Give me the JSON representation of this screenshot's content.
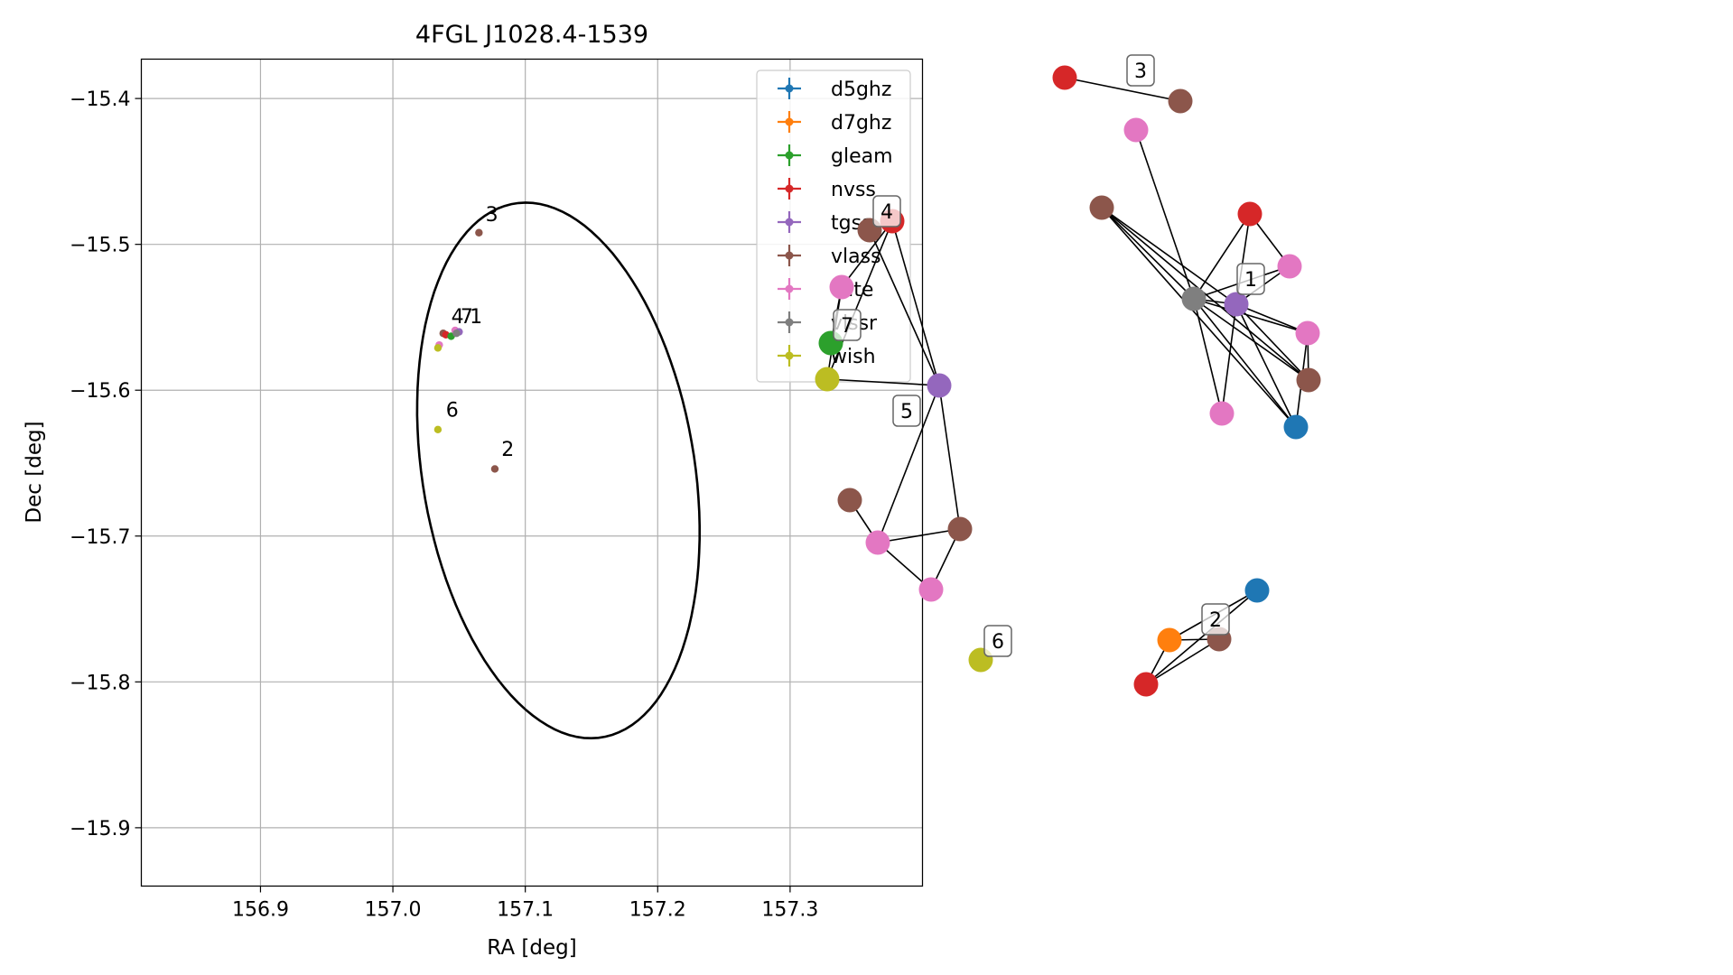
{
  "chart_data": [
    {
      "type": "scatter",
      "title": "4FGL J1028.4-1539",
      "xlabel": "RA [deg]",
      "ylabel": "Dec [deg]",
      "xlim": [
        156.81,
        157.4
      ],
      "ylim": [
        -15.94,
        -15.373
      ],
      "x_ticks": [
        156.9,
        157.0,
        157.1,
        157.2,
        157.3
      ],
      "x_tick_labels": [
        "156.9",
        "157.0",
        "157.1",
        "157.2",
        "157.3"
      ],
      "y_ticks": [
        -15.4,
        -15.5,
        -15.6,
        -15.7,
        -15.8,
        -15.9
      ],
      "y_tick_labels": [
        "−15.4",
        "−15.5",
        "−15.6",
        "−15.7",
        "−15.8",
        "−15.9"
      ],
      "grid": true,
      "legend_position": "top-right",
      "legend": [
        "d5ghz",
        "d7ghz",
        "gleam",
        "nvss",
        "tgss",
        "vlass",
        "vlite",
        "vlssr",
        "wish"
      ],
      "colors": {
        "d5ghz": "#1f77b4",
        "d7ghz": "#ff7f0e",
        "gleam": "#2ca02c",
        "nvss": "#d62728",
        "tgss": "#9467bd",
        "vlass": "#8c564b",
        "vlite": "#e377c2",
        "vlssr": "#7f7f7f",
        "wish": "#bcbd22"
      },
      "ellipse": {
        "center": [
          157.125,
          -15.655
        ],
        "ra_semi_axis": 0.1025,
        "dec_semi_axis": 0.186,
        "angle_deg": 11
      },
      "points": [
        {
          "survey": "vlass",
          "ra": 157.065,
          "dec": -15.492
        },
        {
          "survey": "vlass",
          "ra": 157.077,
          "dec": -15.654
        },
        {
          "survey": "wish",
          "ra": 157.034,
          "dec": -15.627
        },
        {
          "survey": "vlass",
          "ra": 157.038,
          "dec": -15.561
        },
        {
          "survey": "nvss",
          "ra": 157.04,
          "dec": -15.562
        },
        {
          "survey": "gleam",
          "ra": 157.044,
          "dec": -15.563
        },
        {
          "survey": "vlite",
          "ra": 157.047,
          "dec": -15.559
        },
        {
          "survey": "tgss",
          "ra": 157.05,
          "dec": -15.56
        },
        {
          "survey": "vlssr",
          "ra": 157.048,
          "dec": -15.561
        },
        {
          "survey": "vlite",
          "ra": 157.035,
          "dec": -15.569
        },
        {
          "survey": "wish",
          "ra": 157.034,
          "dec": -15.571
        }
      ],
      "cluster_labels": [
        {
          "text": "1",
          "ra": 157.058,
          "dec": -15.554
        },
        {
          "text": "7",
          "ra": 157.051,
          "dec": -15.554
        },
        {
          "text": "4",
          "ra": 157.044,
          "dec": -15.554
        },
        {
          "text": "3",
          "ra": 157.07,
          "dec": -15.484
        },
        {
          "text": "6",
          "ra": 157.04,
          "dec": -15.618
        },
        {
          "text": "2",
          "ra": 157.082,
          "dec": -15.645
        }
      ]
    },
    {
      "type": "network",
      "nodes": [
        {
          "id": "n3a",
          "survey": "nvss",
          "gx": 1179,
          "gy": 86
        },
        {
          "id": "n3b",
          "survey": "vlass",
          "gx": 1307,
          "gy": 112
        },
        {
          "id": "pA",
          "survey": "vlite",
          "gx": 1258,
          "gy": 144
        },
        {
          "id": "bA",
          "survey": "vlass",
          "gx": 1220,
          "gy": 230
        },
        {
          "id": "g1",
          "survey": "vlssr",
          "gx": 1322,
          "gy": 331
        },
        {
          "id": "t1",
          "survey": "tgss",
          "gx": 1369,
          "gy": 337
        },
        {
          "id": "r1",
          "survey": "nvss",
          "gx": 1384,
          "gy": 237
        },
        {
          "id": "p1",
          "survey": "vlite",
          "gx": 1428,
          "gy": 295
        },
        {
          "id": "p2",
          "survey": "vlite",
          "gx": 1448,
          "gy": 369
        },
        {
          "id": "b1",
          "survey": "vlass",
          "gx": 1449,
          "gy": 421
        },
        {
          "id": "p3",
          "survey": "vlite",
          "gx": 1353,
          "gy": 458
        },
        {
          "id": "bl1",
          "survey": "d5ghz",
          "gx": 1435,
          "gy": 473
        },
        {
          "id": "b4",
          "survey": "vlass",
          "gx": 963,
          "gy": 255
        },
        {
          "id": "r4",
          "survey": "nvss",
          "gx": 988,
          "gy": 245
        },
        {
          "id": "p7",
          "survey": "vlite",
          "gx": 932,
          "gy": 318
        },
        {
          "id": "gr7",
          "survey": "gleam",
          "gx": 920,
          "gy": 380
        },
        {
          "id": "y7",
          "survey": "wish",
          "gx": 916,
          "gy": 420
        },
        {
          "id": "t5",
          "survey": "tgss",
          "gx": 1040,
          "gy": 427
        },
        {
          "id": "b5a",
          "survey": "vlass",
          "gx": 941,
          "gy": 554
        },
        {
          "id": "p5a",
          "survey": "vlite",
          "gx": 972,
          "gy": 601
        },
        {
          "id": "b5b",
          "survey": "vlass",
          "gx": 1063,
          "gy": 586
        },
        {
          "id": "p5b",
          "survey": "vlite",
          "gx": 1031,
          "gy": 653
        },
        {
          "id": "y6",
          "survey": "wish",
          "gx": 1086,
          "gy": 731
        },
        {
          "id": "bl2",
          "survey": "d5ghz",
          "gx": 1392,
          "gy": 654
        },
        {
          "id": "o2",
          "survey": "d7ghz",
          "gx": 1295,
          "gy": 709
        },
        {
          "id": "b2",
          "survey": "vlass",
          "gx": 1350,
          "gy": 708
        },
        {
          "id": "r2",
          "survey": "nvss",
          "gx": 1269,
          "gy": 758
        }
      ],
      "edges": [
        [
          "n3a",
          "n3b"
        ],
        [
          "pA",
          "g1"
        ],
        [
          "bA",
          "g1"
        ],
        [
          "bA",
          "t1"
        ],
        [
          "bA",
          "b1"
        ],
        [
          "bA",
          "bl1"
        ],
        [
          "g1",
          "t1"
        ],
        [
          "g1",
          "r1"
        ],
        [
          "g1",
          "p1"
        ],
        [
          "g1",
          "p2"
        ],
        [
          "g1",
          "b1"
        ],
        [
          "g1",
          "p3"
        ],
        [
          "g1",
          "bl1"
        ],
        [
          "t1",
          "r1"
        ],
        [
          "t1",
          "p1"
        ],
        [
          "t1",
          "p2"
        ],
        [
          "t1",
          "b1"
        ],
        [
          "t1",
          "p3"
        ],
        [
          "t1",
          "bl1"
        ],
        [
          "r1",
          "p1"
        ],
        [
          "p2",
          "b1"
        ],
        [
          "p2",
          "bl1"
        ],
        [
          "r4",
          "p7"
        ],
        [
          "r4",
          "y7"
        ],
        [
          "r4",
          "t5"
        ],
        [
          "r4",
          "b4"
        ],
        [
          "b4",
          "t5"
        ],
        [
          "p7",
          "gr7"
        ],
        [
          "p7",
          "y7"
        ],
        [
          "y7",
          "t5"
        ],
        [
          "t5",
          "p5a"
        ],
        [
          "t5",
          "b5b"
        ],
        [
          "b5a",
          "p5a"
        ],
        [
          "p5a",
          "b5b"
        ],
        [
          "p5a",
          "p5b"
        ],
        [
          "b5b",
          "p5b"
        ],
        [
          "bl2",
          "o2"
        ],
        [
          "bl2",
          "r2"
        ],
        [
          "o2",
          "b2"
        ],
        [
          "o2",
          "r2"
        ],
        [
          "b2",
          "r2"
        ]
      ],
      "labels": [
        {
          "text": "3",
          "gx": 1263,
          "gy": 78
        },
        {
          "text": "1",
          "gx": 1385,
          "gy": 309
        },
        {
          "text": "4",
          "gx": 982,
          "gy": 234
        },
        {
          "text": "7",
          "gx": 938,
          "gy": 360
        },
        {
          "text": "5",
          "gx": 1004,
          "gy": 455
        },
        {
          "text": "6",
          "gx": 1105,
          "gy": 710
        },
        {
          "text": "2",
          "gx": 1346,
          "gy": 686
        }
      ]
    }
  ]
}
